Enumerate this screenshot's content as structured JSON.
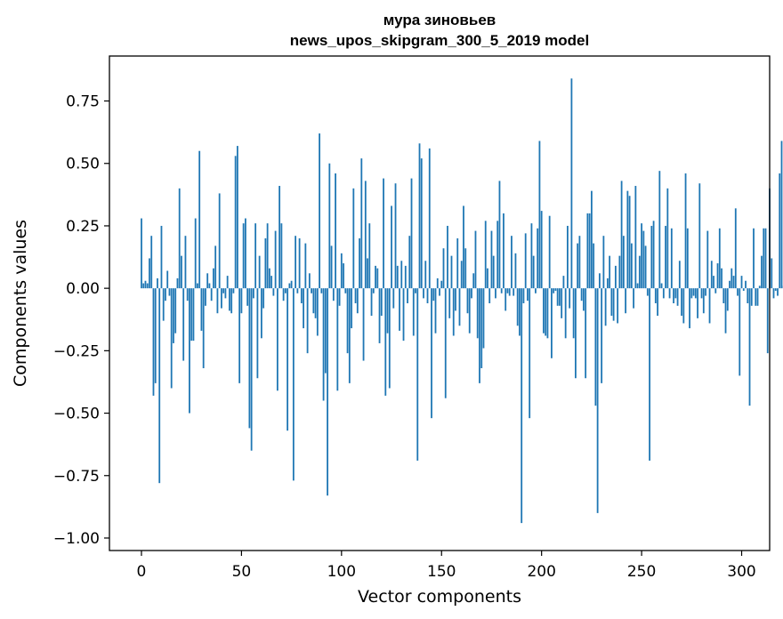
{
  "chart_data": {
    "type": "bar",
    "title": [
      "мура зиновьев",
      "news_upos_skipgram_300_5_2019 model"
    ],
    "xlabel": "Vector components",
    "ylabel": "Components values",
    "xlim": [
      -16,
      314
    ],
    "ylim": [
      -1.05,
      0.93
    ],
    "xticks": [
      0,
      50,
      100,
      150,
      200,
      250,
      300
    ],
    "xtick_labels": [
      "0",
      "50",
      "100",
      "150",
      "200",
      "250",
      "300"
    ],
    "yticks": [
      -1.0,
      -0.75,
      -0.5,
      -0.25,
      0.0,
      0.25,
      0.5,
      0.75
    ],
    "ytick_labels": [
      "−1.00",
      "−0.75",
      "−0.50",
      "−0.25",
      "0.00",
      "0.25",
      "0.50",
      "0.75"
    ],
    "color": "#1f77b4",
    "grid": false,
    "values": [
      0.28,
      0.02,
      0.03,
      0.02,
      0.12,
      0.21,
      -0.43,
      -0.38,
      0.04,
      -0.78,
      0.25,
      -0.13,
      -0.05,
      0.07,
      -0.03,
      -0.4,
      -0.22,
      -0.18,
      0.04,
      0.4,
      0.13,
      -0.29,
      0.21,
      -0.05,
      -0.5,
      -0.21,
      -0.21,
      0.28,
      0.02,
      0.55,
      -0.17,
      -0.32,
      -0.07,
      0.06,
      0.02,
      -0.05,
      0.08,
      0.17,
      -0.1,
      0.38,
      -0.08,
      -0.02,
      -0.04,
      0.05,
      -0.09,
      -0.1,
      -0.02,
      0.53,
      0.57,
      -0.38,
      -0.1,
      0.26,
      0.28,
      -0.07,
      -0.56,
      -0.65,
      -0.04,
      0.26,
      -0.36,
      0.13,
      -0.2,
      -0.08,
      0.2,
      0.26,
      0.08,
      0.05,
      -0.03,
      0.23,
      -0.41,
      0.41,
      0.26,
      -0.05,
      -0.02,
      -0.57,
      0.02,
      0.03,
      -0.77,
      0.21,
      -0.02,
      0.2,
      -0.06,
      -0.16,
      0.18,
      -0.26,
      0.06,
      -0.02,
      -0.1,
      -0.12,
      -0.19,
      0.62,
      -0.02,
      -0.45,
      -0.34,
      -0.83,
      0.5,
      0.17,
      -0.05,
      0.46,
      -0.41,
      -0.07,
      0.14,
      0.1,
      -0.02,
      -0.26,
      -0.38,
      -0.16,
      0.4,
      -0.06,
      -0.1,
      0.2,
      0.52,
      -0.29,
      0.43,
      0.12,
      0.26,
      -0.11,
      -0.02,
      0.09,
      0.08,
      -0.22,
      -0.11,
      0.44,
      -0.43,
      -0.18,
      -0.4,
      0.33,
      -0.08,
      0.42,
      0.09,
      -0.17,
      0.11,
      -0.21,
      0.09,
      -0.06,
      0.21,
      0.44,
      -0.19,
      -0.02,
      -0.69,
      0.58,
      0.52,
      -0.04,
      0.11,
      -0.06,
      0.56,
      -0.52,
      -0.05,
      -0.18,
      0.04,
      -0.03,
      0.03,
      0.16,
      -0.44,
      0.25,
      -0.12,
      0.13,
      -0.19,
      -0.09,
      0.2,
      -0.15,
      0.11,
      0.33,
      0.16,
      -0.1,
      -0.18,
      -0.04,
      0.06,
      0.23,
      -0.2,
      -0.38,
      -0.32,
      -0.24,
      0.27,
      0.08,
      -0.06,
      0.23,
      0.13,
      -0.04,
      0.27,
      0.43,
      -0.02,
      0.3,
      -0.09,
      -0.02,
      -0.03,
      0.21,
      -0.03,
      0.14,
      -0.15,
      -0.19,
      -0.94,
      -0.06,
      0.22,
      -0.05,
      -0.52,
      0.26,
      0.13,
      -0.02,
      0.24,
      0.59,
      0.31,
      -0.18,
      -0.19,
      -0.2,
      0.29,
      -0.28,
      -0.02,
      -0.01,
      -0.07,
      -0.07,
      -0.12,
      0.05,
      -0.2,
      0.25,
      -0.08,
      0.84,
      -0.2,
      -0.36,
      0.18,
      0.21,
      -0.05,
      -0.09,
      -0.36,
      0.3,
      0.3,
      0.39,
      0.18,
      -0.47,
      -0.9,
      0.06,
      -0.38,
      0.21,
      -0.15,
      0.04,
      0.13,
      -0.11,
      -0.13,
      0.09,
      -0.14,
      0.13,
      0.43,
      0.21,
      -0.1,
      0.39,
      0.37,
      0.18,
      -0.08,
      0.41,
      0.02,
      0.13,
      0.26,
      0.23,
      0.17,
      -0.03,
      -0.69,
      0.25,
      0.27,
      -0.06,
      -0.11,
      0.47,
      0.02,
      -0.04,
      0.25,
      0.4,
      -0.04,
      0.24,
      -0.06,
      -0.04,
      -0.07,
      0.11,
      -0.11,
      -0.14,
      0.46,
      0.24,
      -0.16,
      -0.04,
      -0.03,
      -0.04,
      -0.12,
      0.42,
      -0.04,
      -0.1,
      -0.03,
      0.23,
      -0.14,
      0.11,
      0.05,
      -0.02,
      0.1,
      0.24,
      0.08,
      -0.06,
      -0.18,
      -0.09,
      0.03,
      0.08,
      0.05,
      0.32,
      -0.03,
      -0.35,
      0.05,
      -0.01,
      0.03,
      -0.06,
      -0.47,
      -0.07,
      0.24,
      -0.07,
      -0.07,
      0.01,
      0.13,
      0.24,
      0.24,
      -0.26,
      0.4,
      0.12,
      -0.04,
      -0.01,
      -0.03,
      0.46,
      0.59,
      0.01
    ]
  }
}
